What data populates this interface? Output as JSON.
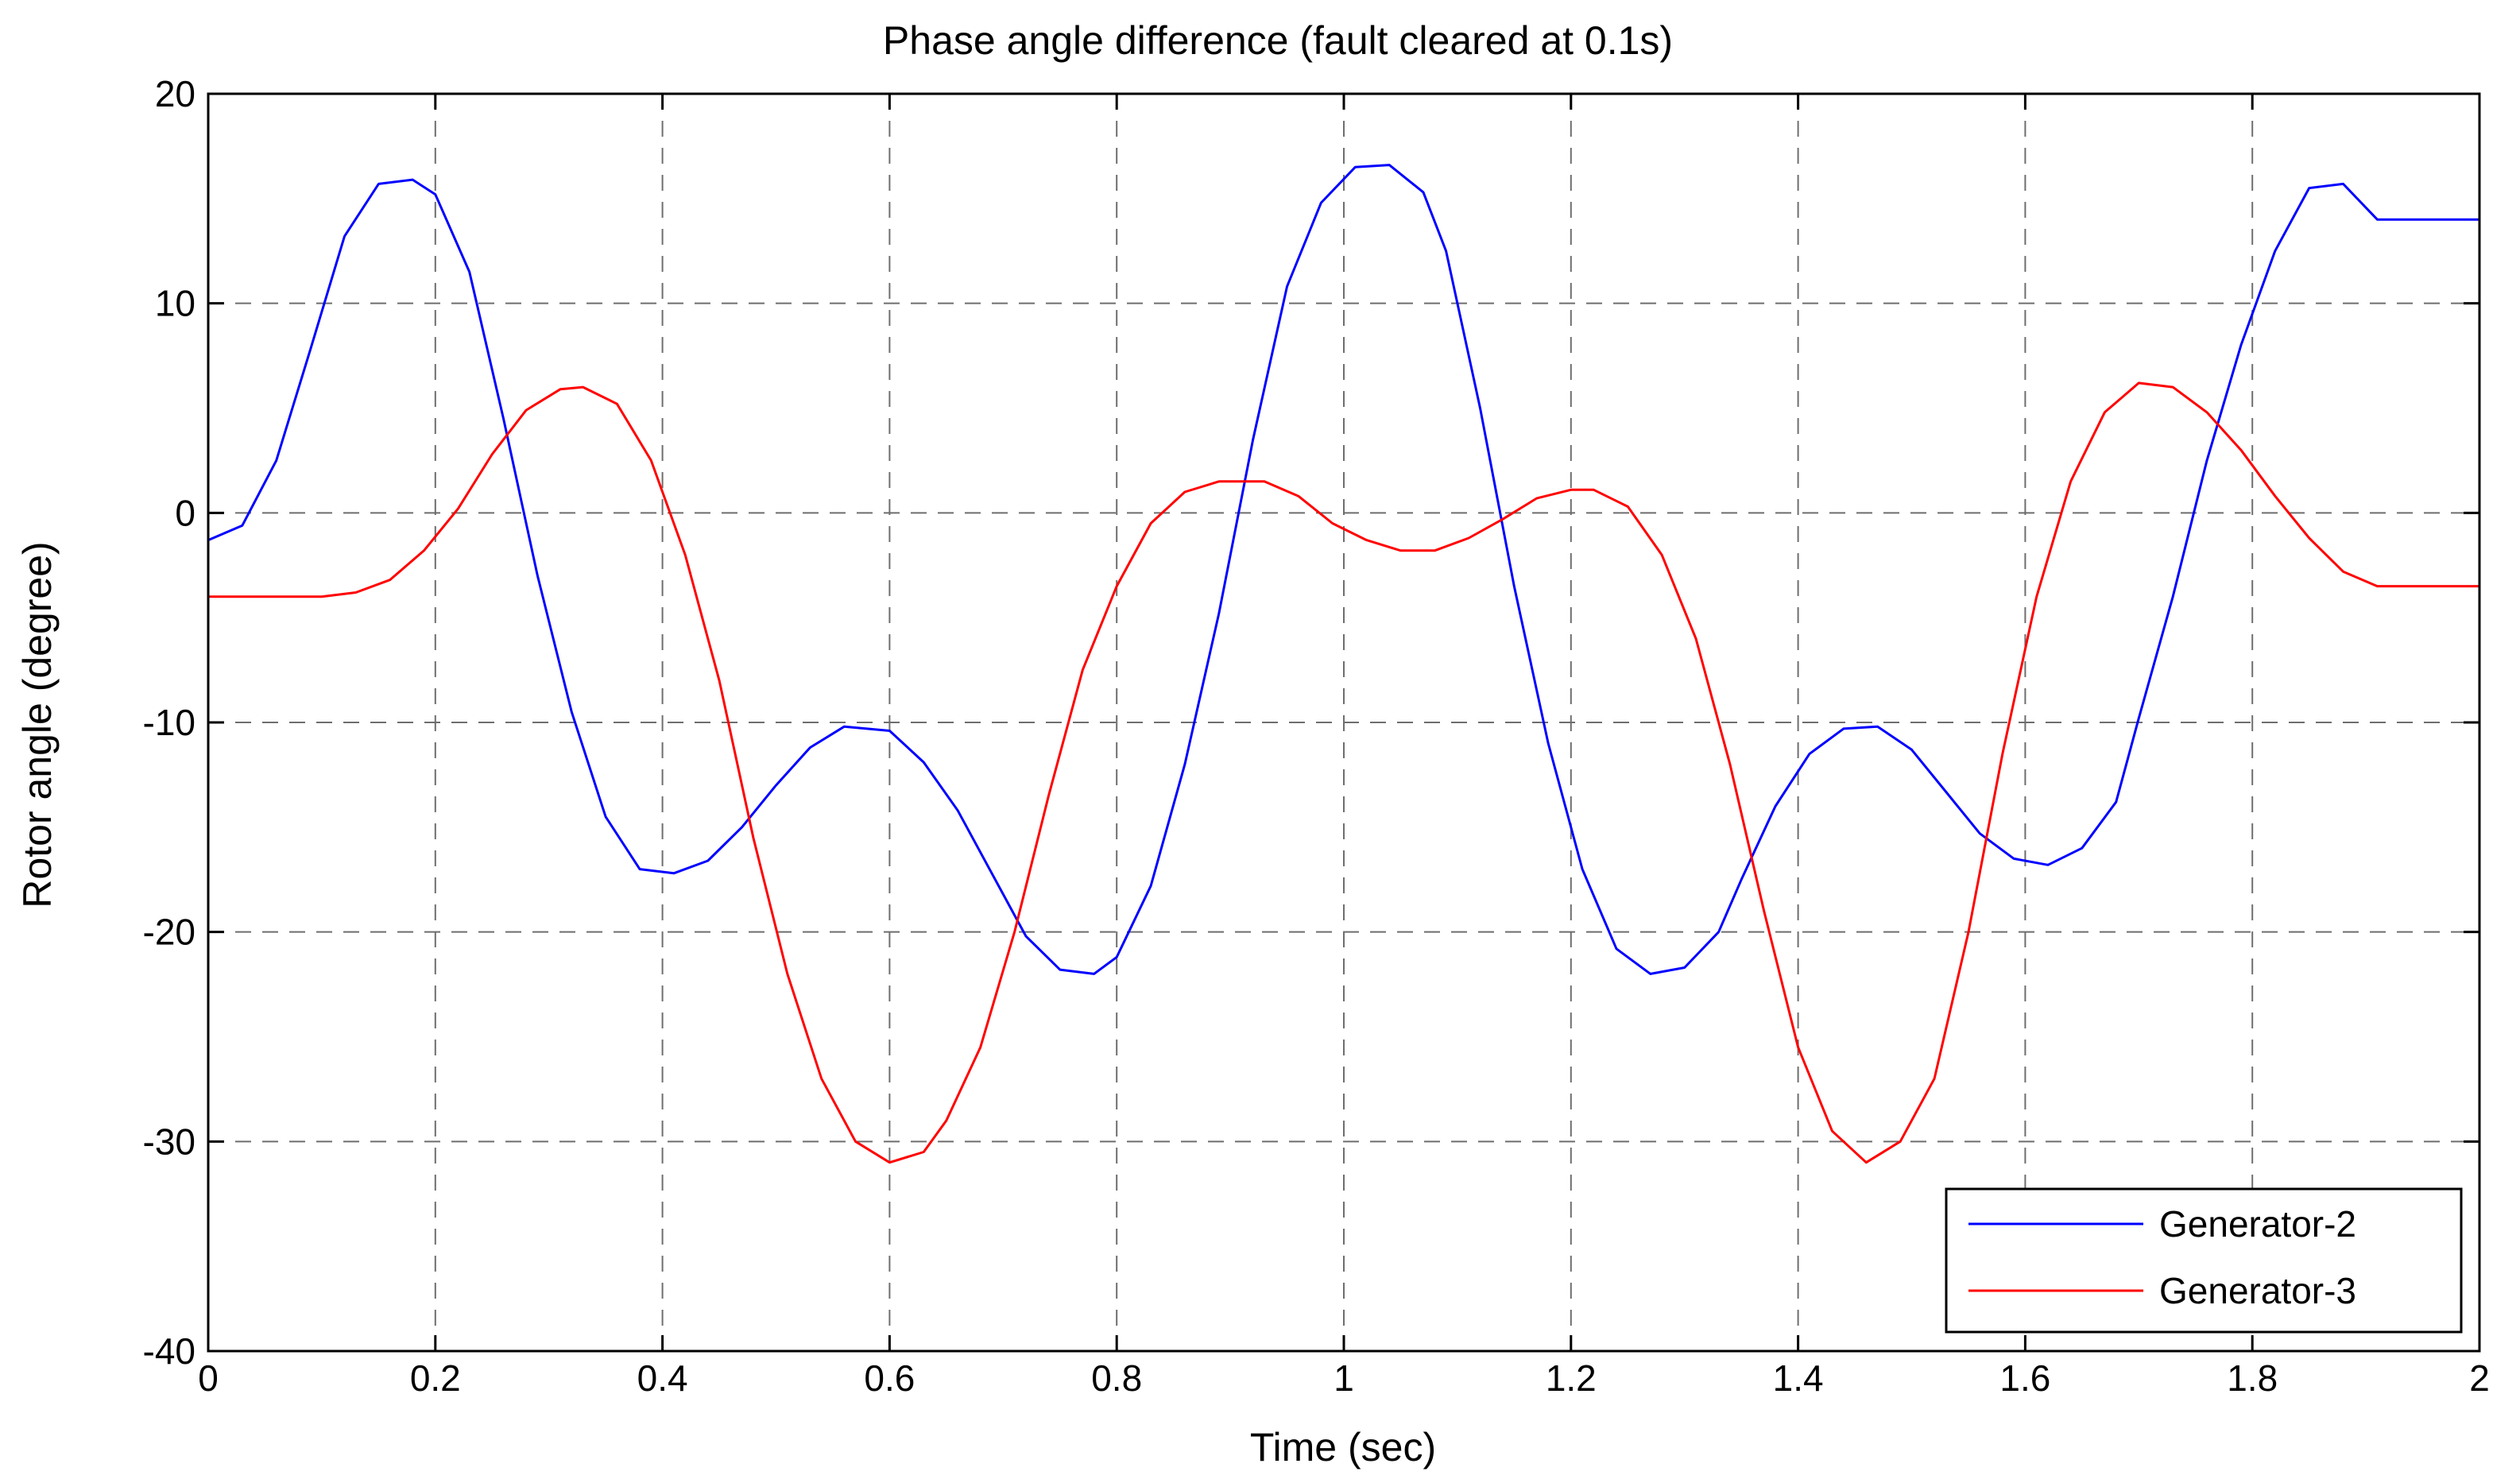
{
  "chart_data": {
    "type": "line",
    "title": "Phase angle difference (fault cleared at 0.1s)",
    "xlabel": "Time (sec)",
    "ylabel": "Rotor angle (degree)",
    "xlim": [
      0,
      2
    ],
    "ylim": [
      -40,
      20
    ],
    "xticks": [
      0,
      0.2,
      0.4,
      0.6,
      0.8,
      1,
      1.2,
      1.4,
      1.6,
      1.8,
      2
    ],
    "xtick_labels": [
      "0",
      "0.2",
      "0.4",
      "0.6",
      "0.8",
      "1",
      "1.2",
      "1.4",
      "1.6",
      "1.8",
      "2"
    ],
    "yticks": [
      -40,
      -30,
      -20,
      -10,
      0,
      10,
      20
    ],
    "ytick_labels": [
      "-40",
      "-30",
      "-20",
      "-10",
      "0",
      "10",
      "20"
    ],
    "grid": true,
    "legend_position": "bottom-right",
    "series": [
      {
        "name": "Generator-2",
        "color": "#0000ff",
        "x": [
          0,
          0.03,
          0.06,
          0.09,
          0.12,
          0.15,
          0.18,
          0.2,
          0.23,
          0.26,
          0.29,
          0.32,
          0.35,
          0.38,
          0.41,
          0.44,
          0.47,
          0.5,
          0.53,
          0.56,
          0.6,
          0.63,
          0.66,
          0.69,
          0.72,
          0.75,
          0.78,
          0.8,
          0.83,
          0.86,
          0.89,
          0.92,
          0.95,
          0.98,
          1.01,
          1.04,
          1.07,
          1.09,
          1.12,
          1.15,
          1.18,
          1.21,
          1.24,
          1.27,
          1.3,
          1.33,
          1.35,
          1.38,
          1.41,
          1.44,
          1.47,
          1.5,
          1.53,
          1.56,
          1.59,
          1.62,
          1.65,
          1.68,
          1.7,
          1.73,
          1.76,
          1.79,
          1.82,
          1.85,
          1.88,
          1.91,
          1.94,
          1.96,
          1.98,
          2.0
        ],
        "y": [
          -1.3,
          -0.6,
          2.5,
          7.8,
          13.2,
          15.7,
          15.9,
          15.2,
          11.5,
          4.5,
          -3.0,
          -9.5,
          -14.5,
          -17.0,
          -17.2,
          -16.6,
          -15.0,
          -13.0,
          -11.2,
          -10.2,
          -10.4,
          -11.9,
          -14.2,
          -17.2,
          -20.2,
          -21.8,
          -22.0,
          -21.2,
          -17.8,
          -12.0,
          -4.8,
          3.5,
          10.8,
          14.8,
          16.5,
          16.6,
          15.3,
          12.5,
          5.0,
          -3.5,
          -11.0,
          -17.0,
          -20.8,
          -22.0,
          -21.7,
          -20.0,
          -17.5,
          -14.0,
          -11.5,
          -10.3,
          -10.2,
          -11.3,
          -13.3,
          -15.3,
          -16.5,
          -16.8,
          -16.0,
          -13.8,
          -9.8,
          -4.0,
          2.5,
          8.0,
          12.5,
          15.5,
          15.7,
          14.0,
          14.0,
          14.0,
          14.0,
          14.0
        ]
      },
      {
        "name": "Generator-3",
        "color": "#ff0000",
        "x": [
          0,
          0.03,
          0.06,
          0.1,
          0.13,
          0.16,
          0.19,
          0.22,
          0.25,
          0.28,
          0.31,
          0.33,
          0.36,
          0.39,
          0.42,
          0.45,
          0.48,
          0.51,
          0.54,
          0.57,
          0.6,
          0.63,
          0.65,
          0.68,
          0.71,
          0.74,
          0.77,
          0.8,
          0.83,
          0.86,
          0.89,
          0.93,
          0.96,
          0.99,
          1.02,
          1.05,
          1.08,
          1.11,
          1.14,
          1.17,
          1.2,
          1.22,
          1.25,
          1.28,
          1.31,
          1.34,
          1.37,
          1.4,
          1.43,
          1.46,
          1.49,
          1.52,
          1.55,
          1.58,
          1.61,
          1.64,
          1.67,
          1.7,
          1.73,
          1.76,
          1.79,
          1.82,
          1.85,
          1.88,
          1.91,
          1.94,
          1.97,
          2.0
        ],
        "y": [
          -4.0,
          -4.0,
          -4.0,
          -4.0,
          -3.8,
          -3.2,
          -1.8,
          0.2,
          2.8,
          4.9,
          5.9,
          6.0,
          5.2,
          2.5,
          -2.0,
          -8.0,
          -15.5,
          -22.0,
          -27.0,
          -30.0,
          -31.0,
          -30.5,
          -29.0,
          -25.5,
          -20.0,
          -13.5,
          -7.5,
          -3.5,
          -0.5,
          1.0,
          1.5,
          1.5,
          0.8,
          -0.5,
          -1.3,
          -1.8,
          -1.8,
          -1.2,
          -0.3,
          0.7,
          1.1,
          1.1,
          0.3,
          -2.0,
          -6.0,
          -12.0,
          -19.0,
          -25.5,
          -29.5,
          -31.0,
          -30.0,
          -27.0,
          -20.0,
          -11.5,
          -4.0,
          1.5,
          4.8,
          6.2,
          6.0,
          4.8,
          3.0,
          0.8,
          -1.2,
          -2.8,
          -3.5,
          -3.5,
          -3.5,
          -3.5
        ]
      }
    ]
  }
}
